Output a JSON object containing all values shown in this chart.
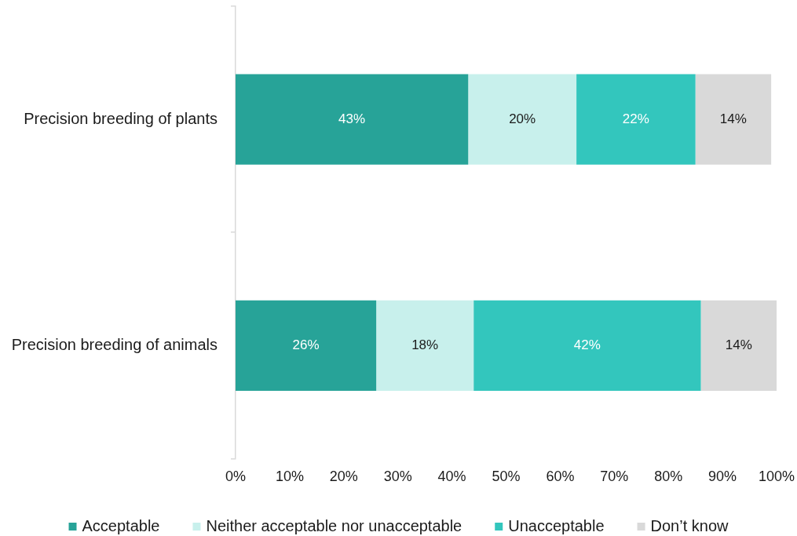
{
  "chart_data": {
    "type": "bar",
    "orientation": "horizontal",
    "stacked": true,
    "categories": [
      "Precision breeding of plants",
      "Precision breeding of animals"
    ],
    "series": [
      {
        "name": "Acceptable",
        "color": "#27a398",
        "values": [
          43,
          26
        ],
        "value_labels": [
          "43%",
          "26%"
        ]
      },
      {
        "name": "Neither acceptable nor unacceptable",
        "color": "#c8f0ec",
        "values": [
          20,
          18
        ],
        "value_labels": [
          "20%",
          "18%"
        ]
      },
      {
        "name": "Unacceptable",
        "color": "#33c6bd",
        "values": [
          22,
          42
        ],
        "value_labels": [
          "22%",
          "42%"
        ]
      },
      {
        "name": "Don’t know",
        "color": "#d9d9d9",
        "values": [
          14,
          14
        ],
        "value_labels": [
          "14%",
          "14%"
        ]
      }
    ],
    "xlim": [
      0,
      100
    ],
    "xticks": [
      {
        "value": 0,
        "label": "0%"
      },
      {
        "value": 10,
        "label": "10%"
      },
      {
        "value": 20,
        "label": "20%"
      },
      {
        "value": 30,
        "label": "30%"
      },
      {
        "value": 40,
        "label": "40%"
      },
      {
        "value": 50,
        "label": "50%"
      },
      {
        "value": 60,
        "label": "60%"
      },
      {
        "value": 70,
        "label": "70%"
      },
      {
        "value": 80,
        "label": "80%"
      },
      {
        "value": 90,
        "label": "90%"
      },
      {
        "value": 100,
        "label": "100%"
      }
    ],
    "legend": "bottom"
  }
}
